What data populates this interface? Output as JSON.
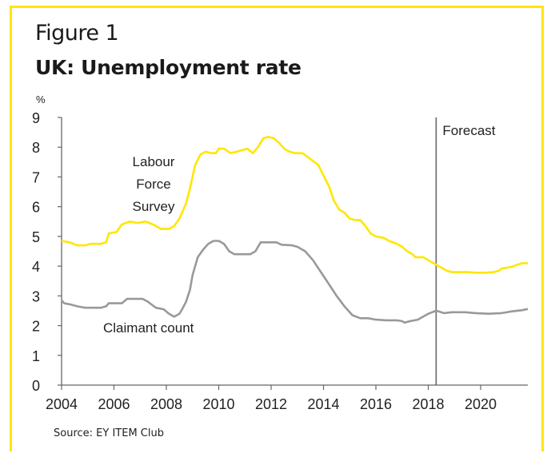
{
  "figure_label": "Figure 1",
  "title": "UK: Unemployment rate",
  "source": "Source: EY ITEM Club",
  "colors": {
    "frame": "#ffe600",
    "lfs": "#ffe600",
    "claimant": "#999999",
    "axis": "#666666",
    "forecast_line": "#666666"
  },
  "chart_data": {
    "type": "line",
    "ylabel": "%",
    "ylim": [
      0,
      9
    ],
    "yticks": [
      0,
      1,
      2,
      3,
      4,
      5,
      6,
      7,
      8,
      9
    ],
    "xlim": [
      2004,
      2021.8
    ],
    "xticks": [
      2004,
      2006,
      2008,
      2010,
      2012,
      2014,
      2016,
      2018,
      2020
    ],
    "grid": false,
    "forecast_start": 2018.3,
    "forecast_label": "Forecast",
    "series": [
      {
        "name": "Labour Force Survey",
        "label_lines": [
          "Labour",
          "Force",
          "Survey"
        ],
        "color": "#ffe600",
        "points": [
          [
            2004.0,
            4.85
          ],
          [
            2004.3,
            4.8
          ],
          [
            2004.6,
            4.7
          ],
          [
            2004.9,
            4.7
          ],
          [
            2005.1,
            4.75
          ],
          [
            2005.5,
            4.75
          ],
          [
            2005.7,
            4.8
          ],
          [
            2005.8,
            5.1
          ],
          [
            2006.1,
            5.15
          ],
          [
            2006.3,
            5.4
          ],
          [
            2006.6,
            5.5
          ],
          [
            2006.9,
            5.45
          ],
          [
            2007.2,
            5.5
          ],
          [
            2007.5,
            5.4
          ],
          [
            2007.8,
            5.25
          ],
          [
            2008.1,
            5.25
          ],
          [
            2008.3,
            5.35
          ],
          [
            2008.5,
            5.6
          ],
          [
            2008.75,
            6.1
          ],
          [
            2008.9,
            6.6
          ],
          [
            2009.1,
            7.4
          ],
          [
            2009.3,
            7.75
          ],
          [
            2009.5,
            7.85
          ],
          [
            2009.7,
            7.8
          ],
          [
            2009.9,
            7.8
          ],
          [
            2010.0,
            7.95
          ],
          [
            2010.2,
            7.95
          ],
          [
            2010.45,
            7.8
          ],
          [
            2010.7,
            7.85
          ],
          [
            2010.9,
            7.9
          ],
          [
            2011.1,
            7.95
          ],
          [
            2011.3,
            7.8
          ],
          [
            2011.5,
            8.0
          ],
          [
            2011.7,
            8.3
          ],
          [
            2011.9,
            8.35
          ],
          [
            2012.1,
            8.3
          ],
          [
            2012.3,
            8.15
          ],
          [
            2012.5,
            7.95
          ],
          [
            2012.7,
            7.85
          ],
          [
            2012.9,
            7.8
          ],
          [
            2013.2,
            7.8
          ],
          [
            2013.5,
            7.6
          ],
          [
            2013.8,
            7.4
          ],
          [
            2014.0,
            7.05
          ],
          [
            2014.2,
            6.7
          ],
          [
            2014.4,
            6.2
          ],
          [
            2014.6,
            5.9
          ],
          [
            2014.8,
            5.8
          ],
          [
            2015.0,
            5.6
          ],
          [
            2015.2,
            5.55
          ],
          [
            2015.4,
            5.55
          ],
          [
            2015.6,
            5.35
          ],
          [
            2015.8,
            5.1
          ],
          [
            2016.0,
            5.0
          ],
          [
            2016.3,
            4.95
          ],
          [
            2016.5,
            4.85
          ],
          [
            2016.8,
            4.75
          ],
          [
            2017.0,
            4.65
          ],
          [
            2017.2,
            4.5
          ],
          [
            2017.4,
            4.4
          ],
          [
            2017.5,
            4.3
          ],
          [
            2017.8,
            4.3
          ],
          [
            2018.0,
            4.2
          ],
          [
            2018.3,
            4.05
          ],
          [
            2018.5,
            3.95
          ],
          [
            2018.7,
            3.85
          ],
          [
            2018.9,
            3.8
          ],
          [
            2019.2,
            3.8
          ],
          [
            2019.5,
            3.8
          ],
          [
            2019.8,
            3.78
          ],
          [
            2020.2,
            3.78
          ],
          [
            2020.5,
            3.8
          ],
          [
            2020.7,
            3.85
          ],
          [
            2020.8,
            3.92
          ],
          [
            2021.0,
            3.95
          ],
          [
            2021.2,
            3.98
          ],
          [
            2021.4,
            4.05
          ],
          [
            2021.6,
            4.1
          ],
          [
            2021.8,
            4.1
          ]
        ]
      },
      {
        "name": "Claimant count",
        "label_lines": [
          "Claimant count"
        ],
        "color": "#999999",
        "points": [
          [
            2004.0,
            2.85
          ],
          [
            2004.1,
            2.75
          ],
          [
            2004.3,
            2.72
          ],
          [
            2004.6,
            2.65
          ],
          [
            2004.9,
            2.6
          ],
          [
            2005.2,
            2.6
          ],
          [
            2005.5,
            2.6
          ],
          [
            2005.7,
            2.65
          ],
          [
            2005.8,
            2.75
          ],
          [
            2006.2,
            2.75
          ],
          [
            2006.3,
            2.75
          ],
          [
            2006.5,
            2.9
          ],
          [
            2006.8,
            2.9
          ],
          [
            2007.1,
            2.9
          ],
          [
            2007.3,
            2.8
          ],
          [
            2007.6,
            2.6
          ],
          [
            2007.9,
            2.55
          ],
          [
            2008.1,
            2.4
          ],
          [
            2008.3,
            2.3
          ],
          [
            2008.5,
            2.4
          ],
          [
            2008.6,
            2.55
          ],
          [
            2008.75,
            2.8
          ],
          [
            2008.9,
            3.2
          ],
          [
            2009.0,
            3.7
          ],
          [
            2009.2,
            4.3
          ],
          [
            2009.4,
            4.55
          ],
          [
            2009.6,
            4.75
          ],
          [
            2009.8,
            4.85
          ],
          [
            2010.0,
            4.85
          ],
          [
            2010.2,
            4.75
          ],
          [
            2010.4,
            4.5
          ],
          [
            2010.6,
            4.4
          ],
          [
            2010.9,
            4.4
          ],
          [
            2011.2,
            4.4
          ],
          [
            2011.4,
            4.5
          ],
          [
            2011.6,
            4.8
          ],
          [
            2011.9,
            4.8
          ],
          [
            2012.2,
            4.8
          ],
          [
            2012.4,
            4.72
          ],
          [
            2012.8,
            4.7
          ],
          [
            2013.0,
            4.65
          ],
          [
            2013.3,
            4.5
          ],
          [
            2013.6,
            4.2
          ],
          [
            2013.9,
            3.8
          ],
          [
            2014.2,
            3.4
          ],
          [
            2014.5,
            3.0
          ],
          [
            2014.8,
            2.65
          ],
          [
            2015.1,
            2.35
          ],
          [
            2015.4,
            2.25
          ],
          [
            2015.7,
            2.25
          ],
          [
            2016.0,
            2.2
          ],
          [
            2016.4,
            2.18
          ],
          [
            2016.8,
            2.18
          ],
          [
            2017.0,
            2.15
          ],
          [
            2017.1,
            2.1
          ],
          [
            2017.3,
            2.15
          ],
          [
            2017.6,
            2.2
          ],
          [
            2017.8,
            2.3
          ],
          [
            2018.0,
            2.4
          ],
          [
            2018.3,
            2.5
          ],
          [
            2018.6,
            2.42
          ],
          [
            2018.9,
            2.45
          ],
          [
            2019.4,
            2.45
          ],
          [
            2019.8,
            2.42
          ],
          [
            2020.3,
            2.4
          ],
          [
            2020.8,
            2.42
          ],
          [
            2021.2,
            2.48
          ],
          [
            2021.6,
            2.52
          ],
          [
            2021.8,
            2.56
          ]
        ]
      }
    ]
  }
}
